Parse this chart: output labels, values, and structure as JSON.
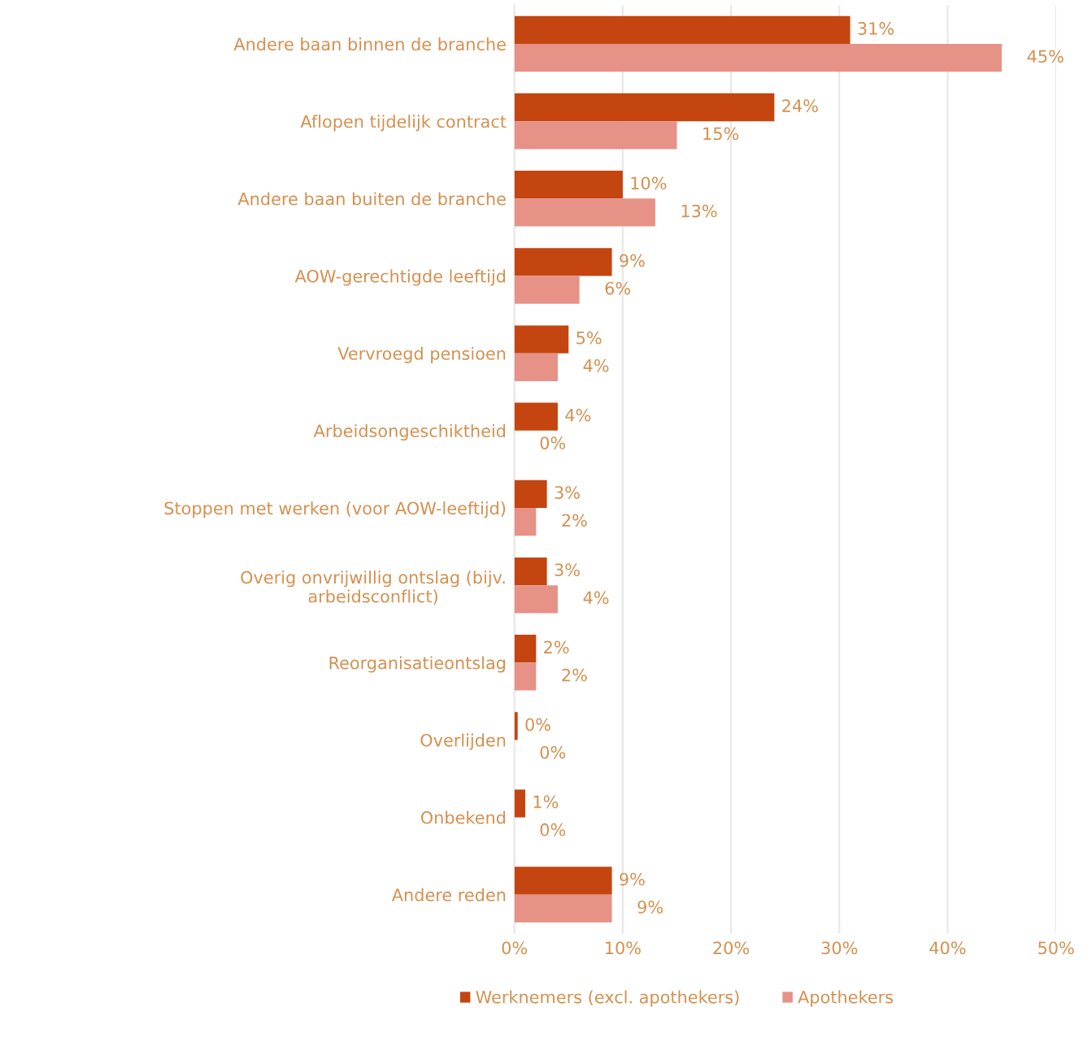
{
  "chart_data": {
    "type": "bar",
    "orientation": "horizontal",
    "categories": [
      "Andere baan binnen de branche",
      "Aflopen tijdelijk contract",
      "Andere baan buiten de branche",
      "AOW-gerechtigde leeftijd",
      "Vervroegd pensioen",
      "Arbeidsongeschiktheid",
      "Stoppen met werken (voor AOW-leeftijd)",
      "Overig onvrijwillig ontslag (bijv.\narbeidsconflict)",
      "Reorganisatieontslag",
      "Overlijden",
      "Onbekend",
      "Andere reden"
    ],
    "series": [
      {
        "name": "Werknemers (excl. apothekers)",
        "color": "#c4450f",
        "values": [
          31,
          24,
          10,
          9,
          5,
          4,
          3,
          3,
          2,
          0.3,
          1,
          9
        ],
        "value_labels": [
          "31%",
          "24%",
          "10%",
          "9%",
          "5%",
          "4%",
          "3%",
          "3%",
          "2%",
          "0%",
          "1%",
          "9%"
        ]
      },
      {
        "name": "Apothekers",
        "color": "#e69287",
        "values": [
          45,
          15,
          13,
          6,
          4,
          0,
          2,
          4,
          2,
          0,
          0,
          9
        ],
        "value_labels": [
          "45%",
          "15%",
          "13%",
          "6%",
          "4%",
          "0%",
          "2%",
          "4%",
          "2%",
          "0%",
          "0%",
          "9%"
        ]
      }
    ],
    "xlim": [
      0,
      50
    ],
    "xticks": [
      {
        "value": 0,
        "label": "0%"
      },
      {
        "value": 10,
        "label": "10%"
      },
      {
        "value": 20,
        "label": "20%"
      },
      {
        "value": 30,
        "label": "30%"
      },
      {
        "value": 40,
        "label": "40%"
      },
      {
        "value": 50,
        "label": "50%"
      }
    ],
    "grid": "x",
    "legend": "bottom"
  }
}
